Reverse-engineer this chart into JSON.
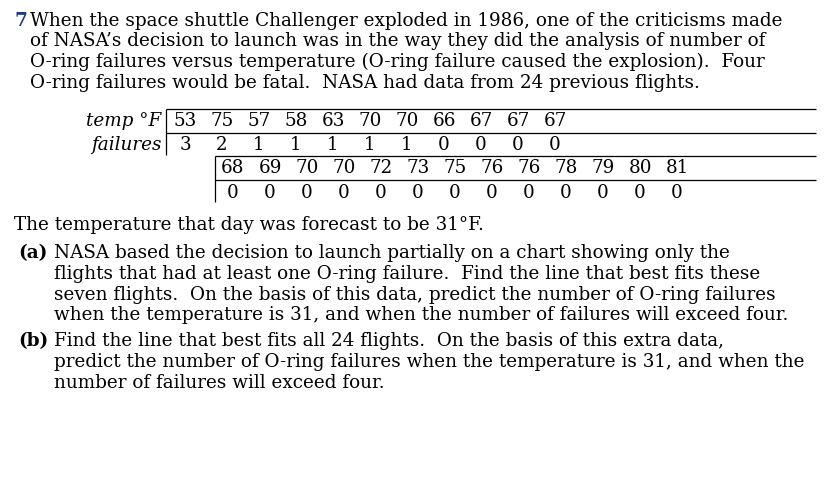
{
  "background_color": "#ffffff",
  "text_color": "#000000",
  "number_color": "#1a3a8a",
  "font_family": "DejaVu Serif",
  "problem_number": "7",
  "intro_text": [
    "When the space shuttle Challenger exploded in 1986, one of the criticisms made",
    "of NASA’s decision to launch was in the way they did the analysis of number of",
    "O-ring failures versus temperature (O-ring failure caused the explosion).  Four",
    "O-ring failures would be fatal.  NASA had data from 24 previous flights."
  ],
  "table": {
    "row1_label": "temp °F",
    "row1_values": [
      "53",
      "75",
      "57",
      "58",
      "63",
      "70",
      "70",
      "66",
      "67",
      "67",
      "67"
    ],
    "row2_label": "failures",
    "row2_values": [
      "3",
      "2",
      "1",
      "1",
      "1",
      "1",
      "1",
      "0",
      "0",
      "0",
      "0"
    ],
    "row3_values": [
      "68",
      "69",
      "70",
      "70",
      "72",
      "73",
      "75",
      "76",
      "76",
      "78",
      "79",
      "80",
      "81"
    ],
    "row4_values": [
      "0",
      "0",
      "0",
      "0",
      "0",
      "0",
      "0",
      "0",
      "0",
      "0",
      "0",
      "0",
      "0"
    ]
  },
  "temp_line": "The temperature that day was forecast to be 31°F.",
  "part_a_label": "(a)",
  "part_a_text": [
    "NASA based the decision to launch partially on a chart showing only the",
    "flights that had at least one O-ring failure.  Find the line that best fits these",
    "seven flights.  On the basis of this data, predict the number of O-ring failures",
    "when the temperature is 31, and when the number of failures will exceed four."
  ],
  "part_b_label": "(b)",
  "part_b_text": [
    "Find the line that best fits all 24 flights.  On the basis of this extra data,",
    "predict the number of O-ring failures when the temperature is 31, and when the",
    "number of failures will exceed four."
  ],
  "figsize": [
    8.26,
    4.82
  ],
  "dpi": 100
}
